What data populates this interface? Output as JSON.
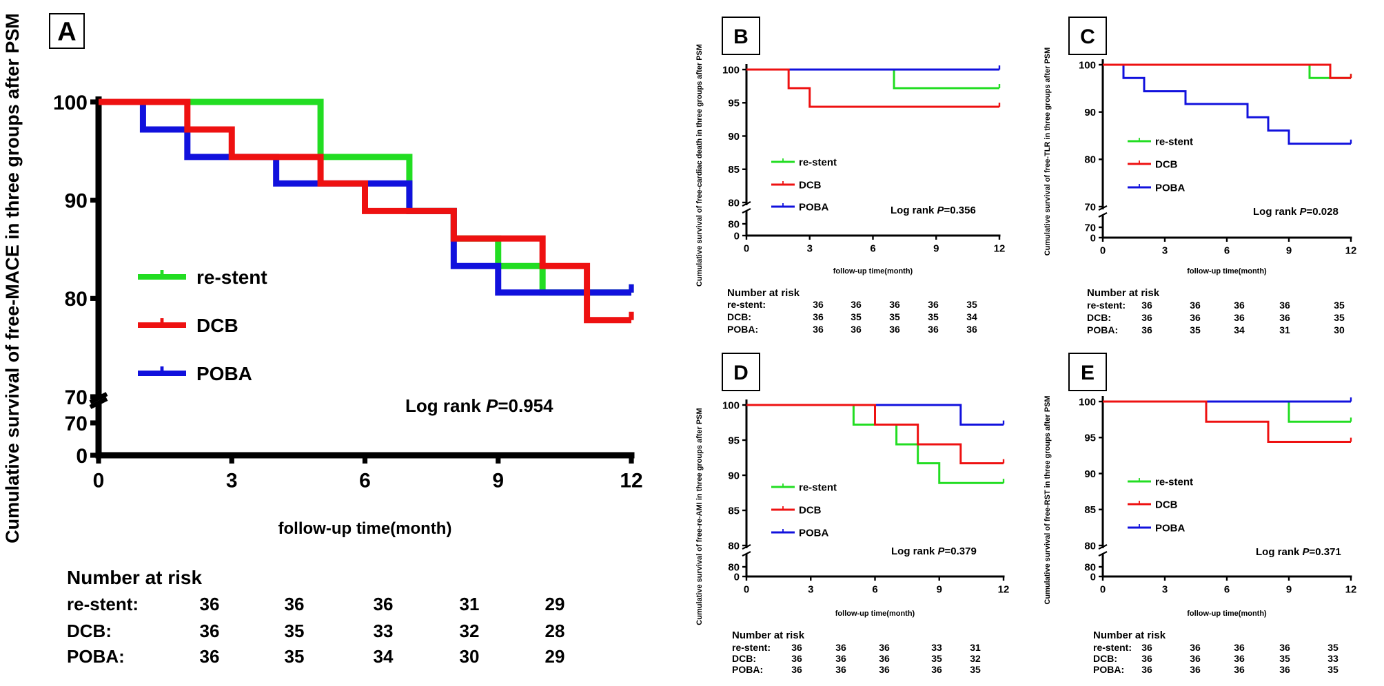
{
  "colors": {
    "re-stent": "#22dd22",
    "DCB": "#ee1111",
    "POBA": "#1111dd",
    "axis": "#000000"
  },
  "series_names": [
    "re-stent",
    "DCB",
    "POBA"
  ],
  "xlabel": "follow-up time(month)",
  "risk_title": "Number at risk",
  "risk_row_labels": [
    "re-stent:",
    "DCB:",
    "POBA:"
  ],
  "chart_data": [
    {
      "panel": "A",
      "type": "line",
      "step": true,
      "ylabel": "Cumulative survival of free-MACE in three groups after PSM",
      "xlabel": "follow-up time(month)",
      "xlim": [
        0,
        12
      ],
      "xticks": [
        "0",
        "3",
        "6",
        "9",
        "12"
      ],
      "ylim": [
        70,
        100
      ],
      "yticks": [
        "100",
        "90",
        "80",
        "70"
      ],
      "ybreak_ticks": [
        "70",
        "0"
      ],
      "logrank_prefix": "Log rank ",
      "logrank_p": "P",
      "logrank_value": "=0.954",
      "series": [
        {
          "name": "re-stent",
          "steps": [
            [
              0,
              100
            ],
            [
              5,
              94.4
            ],
            [
              7,
              88.9
            ],
            [
              8,
              86.1
            ],
            [
              9,
              83.3
            ],
            [
              10,
              80.6
            ],
            [
              12,
              80.6
            ]
          ]
        },
        {
          "name": "DCB",
          "steps": [
            [
              0,
              100
            ],
            [
              2,
              97.2
            ],
            [
              3,
              94.4
            ],
            [
              5,
              91.7
            ],
            [
              6,
              88.9
            ],
            [
              8,
              86.1
            ],
            [
              10,
              83.3
            ],
            [
              11,
              77.8
            ],
            [
              12,
              77.8
            ]
          ]
        },
        {
          "name": "POBA",
          "steps": [
            [
              0,
              100
            ],
            [
              1,
              97.2
            ],
            [
              2,
              94.4
            ],
            [
              4,
              91.7
            ],
            [
              7,
              88.9
            ],
            [
              8,
              83.3
            ],
            [
              9,
              80.6
            ],
            [
              12,
              80.6
            ]
          ]
        }
      ],
      "risk": [
        [
          "36",
          "36",
          "36",
          "31",
          "29"
        ],
        [
          "36",
          "35",
          "33",
          "32",
          "28"
        ],
        [
          "36",
          "35",
          "34",
          "30",
          "29"
        ]
      ]
    },
    {
      "panel": "B",
      "type": "line",
      "step": true,
      "ylabel": "Cumulative survival of free-cardiac death in three groups after PSM",
      "xlabel": "follow-up time(month)",
      "xlim": [
        0,
        12
      ],
      "xticks": [
        "0",
        "3",
        "6",
        "9",
        "12"
      ],
      "ylim": [
        80,
        100
      ],
      "yticks": [
        "100",
        "95",
        "90",
        "85",
        "80"
      ],
      "ybreak_ticks": [
        "80",
        "0"
      ],
      "logrank_prefix": "Log rank ",
      "logrank_p": "P",
      "logrank_value": "=0.356",
      "series": [
        {
          "name": "re-stent",
          "steps": [
            [
              0,
              100
            ],
            [
              7,
              97.2
            ],
            [
              12,
              97.2
            ]
          ]
        },
        {
          "name": "DCB",
          "steps": [
            [
              0,
              100
            ],
            [
              2,
              97.2
            ],
            [
              3,
              94.4
            ],
            [
              12,
              94.4
            ]
          ]
        },
        {
          "name": "POBA",
          "steps": [
            [
              0,
              100
            ],
            [
              12,
              100
            ]
          ]
        }
      ],
      "risk": [
        [
          "36",
          "36",
          "36",
          "36",
          "35"
        ],
        [
          "36",
          "35",
          "35",
          "35",
          "34"
        ],
        [
          "36",
          "36",
          "36",
          "36",
          "36"
        ]
      ]
    },
    {
      "panel": "C",
      "type": "line",
      "step": true,
      "ylabel": "Cumulative survival of free-TLR in three groups after PSM",
      "xlabel": "follow-up time(month)",
      "xlim": [
        0,
        12
      ],
      "xticks": [
        "0",
        "3",
        "6",
        "9",
        "12"
      ],
      "ylim": [
        70,
        100
      ],
      "yticks": [
        "100",
        "90",
        "80",
        "70"
      ],
      "ybreak_ticks": [
        "70",
        "0"
      ],
      "logrank_prefix": "Log rank ",
      "logrank_p": "P",
      "logrank_value": "=0.028",
      "series": [
        {
          "name": "re-stent",
          "steps": [
            [
              0,
              100
            ],
            [
              10,
              97.2
            ],
            [
              12,
              97.2
            ]
          ]
        },
        {
          "name": "DCB",
          "steps": [
            [
              0,
              100
            ],
            [
              11,
              97.2
            ],
            [
              12,
              97.2
            ]
          ]
        },
        {
          "name": "POBA",
          "steps": [
            [
              0,
              100
            ],
            [
              1,
              97.2
            ],
            [
              2,
              94.4
            ],
            [
              4,
              91.7
            ],
            [
              7,
              88.9
            ],
            [
              8,
              86.1
            ],
            [
              9,
              83.3
            ],
            [
              12,
              83.3
            ]
          ]
        }
      ],
      "risk": [
        [
          "36",
          "36",
          "36",
          "36",
          "35"
        ],
        [
          "36",
          "36",
          "36",
          "36",
          "35"
        ],
        [
          "36",
          "35",
          "34",
          "31",
          "30"
        ]
      ]
    },
    {
      "panel": "D",
      "type": "line",
      "step": true,
      "ylabel": "Cumulative survival of free-re-AMI in three groups after PSM",
      "xlabel": "follow-up time(month)",
      "xlim": [
        0,
        12
      ],
      "xticks": [
        "0",
        "3",
        "6",
        "9",
        "12"
      ],
      "ylim": [
        80,
        100
      ],
      "yticks": [
        "100",
        "95",
        "90",
        "85",
        "80"
      ],
      "ybreak_ticks": [
        "80",
        "0"
      ],
      "logrank_prefix": "Log rank ",
      "logrank_p": "P",
      "logrank_value": "=0.379",
      "series": [
        {
          "name": "re-stent",
          "steps": [
            [
              0,
              100
            ],
            [
              5,
              97.2
            ],
            [
              7,
              94.4
            ],
            [
              8,
              91.7
            ],
            [
              9,
              88.9
            ],
            [
              12,
              88.9
            ]
          ]
        },
        {
          "name": "DCB",
          "steps": [
            [
              0,
              100
            ],
            [
              6,
              97.2
            ],
            [
              8,
              94.4
            ],
            [
              10,
              91.7
            ],
            [
              12,
              91.7
            ]
          ]
        },
        {
          "name": "POBA",
          "steps": [
            [
              0,
              100
            ],
            [
              10,
              97.2
            ],
            [
              12,
              97.2
            ]
          ]
        }
      ],
      "risk": [
        [
          "36",
          "36",
          "36",
          "33",
          "31"
        ],
        [
          "36",
          "36",
          "36",
          "35",
          "32"
        ],
        [
          "36",
          "36",
          "36",
          "36",
          "35"
        ]
      ]
    },
    {
      "panel": "E",
      "type": "line",
      "step": true,
      "ylabel": "Cumulative survival of free-RST in three groups after PSM",
      "xlabel": "follow-up time(month)",
      "xlim": [
        0,
        12
      ],
      "xticks": [
        "0",
        "3",
        "6",
        "9",
        "12"
      ],
      "ylim": [
        80,
        100
      ],
      "yticks": [
        "100",
        "95",
        "90",
        "85",
        "80"
      ],
      "ybreak_ticks": [
        "80",
        "0"
      ],
      "logrank_prefix": "Log rank ",
      "logrank_p": "P",
      "logrank_value": "=0.371",
      "series": [
        {
          "name": "re-stent",
          "steps": [
            [
              0,
              100
            ],
            [
              9,
              97.2
            ],
            [
              12,
              97.2
            ]
          ]
        },
        {
          "name": "DCB",
          "steps": [
            [
              0,
              100
            ],
            [
              5,
              97.2
            ],
            [
              8,
              94.4
            ],
            [
              12,
              94.4
            ]
          ]
        },
        {
          "name": "POBA",
          "steps": [
            [
              0,
              100
            ],
            [
              12,
              100
            ]
          ]
        }
      ],
      "risk": [
        [
          "36",
          "36",
          "36",
          "36",
          "35"
        ],
        [
          "36",
          "36",
          "36",
          "35",
          "33"
        ],
        [
          "36",
          "36",
          "36",
          "36",
          "35"
        ]
      ]
    }
  ]
}
